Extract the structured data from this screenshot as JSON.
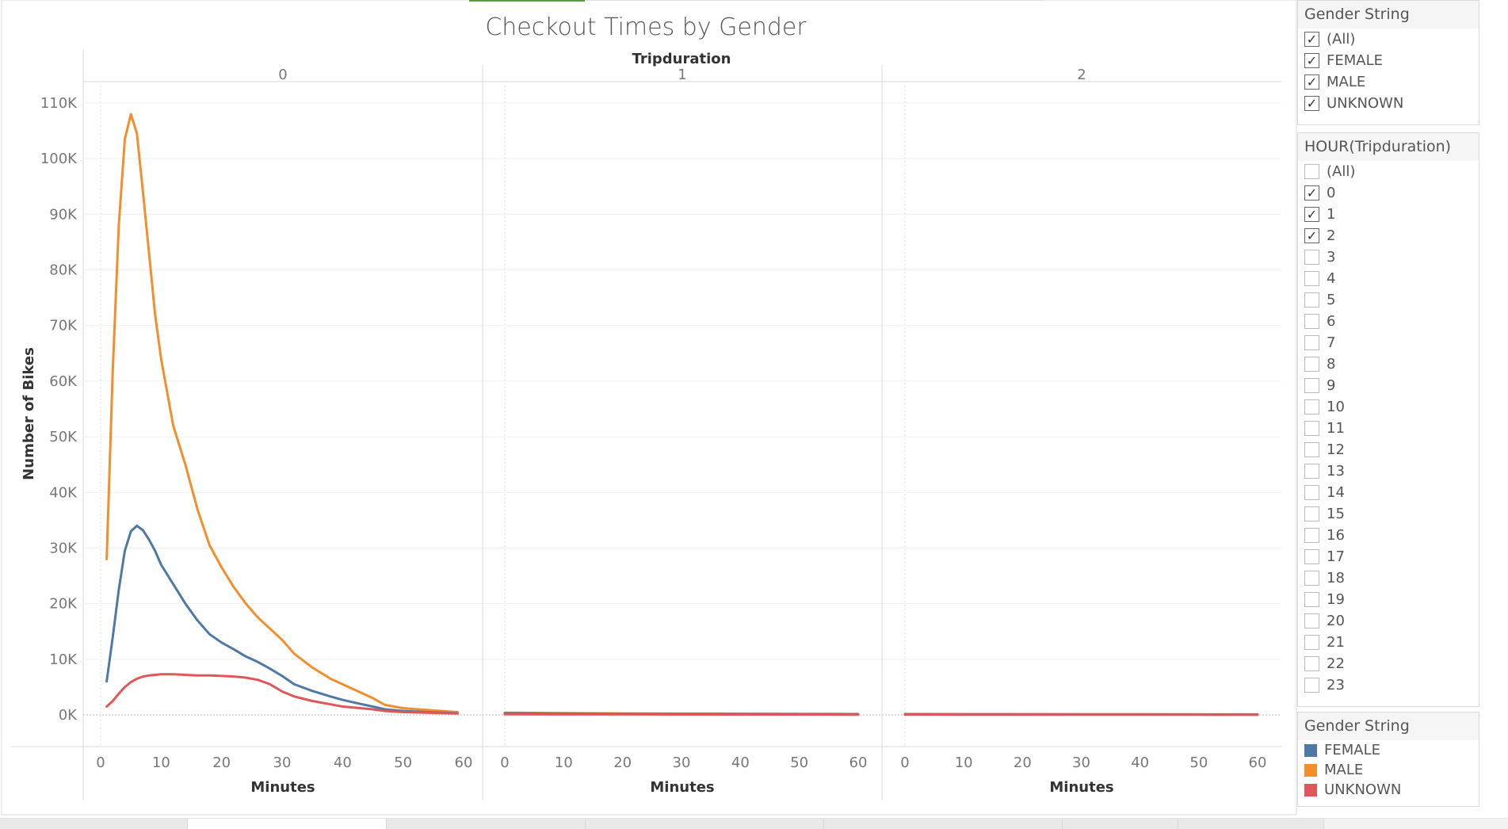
{
  "title": "Checkout Times by Gender",
  "column_header": "Tripduration",
  "colors": {
    "FEMALE": "#4e79a7",
    "MALE": "#f28e2b",
    "UNKNOWN": "#e15759",
    "accent": "#5a9e3a"
  },
  "chart_data": {
    "type": "line",
    "title": "Checkout Times by Gender",
    "column_field": "Tripduration",
    "facets": [
      "0",
      "1",
      "2"
    ],
    "xlabel": "Minutes",
    "ylabel": "Number of Bikes",
    "xlim": [
      0,
      60
    ],
    "ylim": [
      0,
      110000
    ],
    "x_ticks": [
      "0",
      "10",
      "20",
      "30",
      "40",
      "50",
      "60"
    ],
    "y_ticks": [
      "0K",
      "10K",
      "20K",
      "30K",
      "40K",
      "50K",
      "60K",
      "70K",
      "80K",
      "90K",
      "100K",
      "110K"
    ],
    "grid": true,
    "series": [
      {
        "name": "MALE",
        "facet": "0",
        "x": [
          1,
          2,
          3,
          4,
          5,
          6,
          7,
          8,
          9,
          10,
          12,
          14,
          16,
          18,
          20,
          22,
          24,
          26,
          28,
          30,
          32,
          35,
          38,
          40,
          42,
          45,
          47,
          50,
          55,
          59
        ],
        "values": [
          28000,
          62000,
          88000,
          103500,
          108000,
          104500,
          94000,
          83000,
          72000,
          64000,
          52000,
          45000,
          37000,
          30500,
          26500,
          23000,
          20000,
          17500,
          15500,
          13500,
          11000,
          8500,
          6500,
          5500,
          4500,
          3000,
          1800,
          1200,
          800,
          500
        ]
      },
      {
        "name": "FEMALE",
        "facet": "0",
        "x": [
          1,
          2,
          3,
          4,
          5,
          6,
          7,
          8,
          9,
          10,
          12,
          14,
          16,
          18,
          20,
          22,
          24,
          26,
          28,
          30,
          32,
          35,
          38,
          40,
          42,
          45,
          47,
          50,
          55,
          59
        ],
        "values": [
          6000,
          14000,
          22500,
          29500,
          33000,
          34000,
          33200,
          31500,
          29500,
          27000,
          23500,
          20000,
          17000,
          14500,
          13000,
          11800,
          10500,
          9500,
          8300,
          7000,
          5500,
          4300,
          3300,
          2700,
          2200,
          1500,
          1000,
          700,
          450,
          300
        ]
      },
      {
        "name": "UNKNOWN",
        "facet": "0",
        "x": [
          1,
          2,
          3,
          4,
          5,
          6,
          7,
          8,
          9,
          10,
          12,
          14,
          16,
          18,
          20,
          22,
          24,
          26,
          28,
          30,
          32,
          35,
          38,
          40,
          42,
          45,
          47,
          50,
          55,
          59
        ],
        "values": [
          1500,
          2500,
          3800,
          5000,
          5900,
          6500,
          6900,
          7100,
          7200,
          7300,
          7300,
          7200,
          7100,
          7100,
          7000,
          6900,
          6700,
          6300,
          5500,
          4200,
          3300,
          2500,
          1900,
          1500,
          1300,
          1000,
          700,
          500,
          350,
          250
        ]
      },
      {
        "name": "MALE",
        "facet": "1",
        "x": [
          0,
          10,
          20,
          30,
          40,
          50,
          60
        ],
        "values": [
          400,
          300,
          250,
          220,
          200,
          180,
          150
        ]
      },
      {
        "name": "FEMALE",
        "facet": "1",
        "x": [
          0,
          10,
          20,
          30,
          40,
          50,
          60
        ],
        "values": [
          300,
          250,
          200,
          180,
          160,
          140,
          120
        ]
      },
      {
        "name": "UNKNOWN",
        "facet": "1",
        "x": [
          0,
          10,
          20,
          30,
          40,
          50,
          60
        ],
        "values": [
          100,
          90,
          80,
          70,
          60,
          50,
          40
        ]
      },
      {
        "name": "MALE",
        "facet": "2",
        "x": [
          0,
          10,
          20,
          30,
          40,
          50,
          60
        ],
        "values": [
          150,
          130,
          120,
          110,
          100,
          90,
          80
        ]
      },
      {
        "name": "FEMALE",
        "facet": "2",
        "x": [
          0,
          10,
          20,
          30,
          40,
          50,
          60
        ],
        "values": [
          120,
          110,
          100,
          90,
          80,
          70,
          60
        ]
      },
      {
        "name": "UNKNOWN",
        "facet": "2",
        "x": [
          0,
          10,
          20,
          30,
          40,
          50,
          60
        ],
        "values": [
          50,
          45,
          40,
          35,
          30,
          25,
          20
        ]
      }
    ]
  },
  "filters": {
    "gender": {
      "title": "Gender String",
      "items": [
        {
          "label": "(All)",
          "checked": true
        },
        {
          "label": "FEMALE",
          "checked": true
        },
        {
          "label": "MALE",
          "checked": true
        },
        {
          "label": "UNKNOWN",
          "checked": true
        }
      ]
    },
    "hour": {
      "title": "HOUR(Tripduration)",
      "items": [
        {
          "label": "(All)",
          "checked": false
        },
        {
          "label": "0",
          "checked": true
        },
        {
          "label": "1",
          "checked": true
        },
        {
          "label": "2",
          "checked": true
        },
        {
          "label": "3",
          "checked": false
        },
        {
          "label": "4",
          "checked": false
        },
        {
          "label": "5",
          "checked": false
        },
        {
          "label": "6",
          "checked": false
        },
        {
          "label": "7",
          "checked": false
        },
        {
          "label": "8",
          "checked": false
        },
        {
          "label": "9",
          "checked": false
        },
        {
          "label": "10",
          "checked": false
        },
        {
          "label": "11",
          "checked": false
        },
        {
          "label": "12",
          "checked": false
        },
        {
          "label": "13",
          "checked": false
        },
        {
          "label": "14",
          "checked": false
        },
        {
          "label": "15",
          "checked": false
        },
        {
          "label": "16",
          "checked": false
        },
        {
          "label": "17",
          "checked": false
        },
        {
          "label": "18",
          "checked": false
        },
        {
          "label": "19",
          "checked": false
        },
        {
          "label": "20",
          "checked": false
        },
        {
          "label": "21",
          "checked": false
        },
        {
          "label": "22",
          "checked": false
        },
        {
          "label": "23",
          "checked": false
        }
      ]
    }
  },
  "legend": {
    "title": "Gender String",
    "items": [
      {
        "label": "FEMALE",
        "color": "#4e79a7"
      },
      {
        "label": "MALE",
        "color": "#f28e2b"
      },
      {
        "label": "UNKNOWN",
        "color": "#e15759"
      }
    ]
  }
}
